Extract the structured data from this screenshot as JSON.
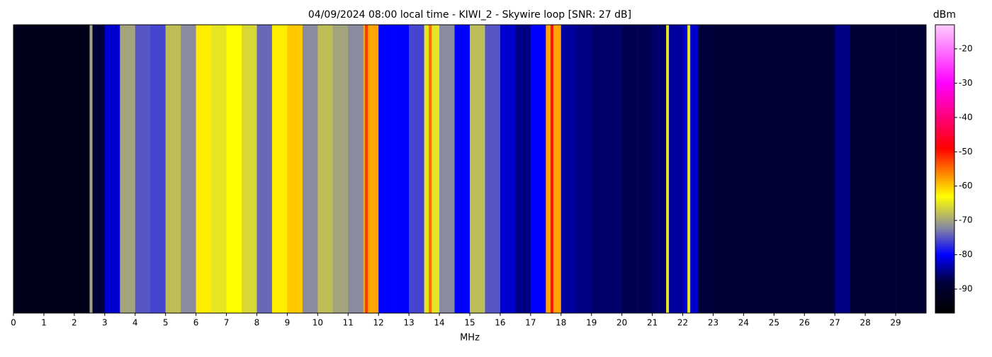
{
  "chart_data": {
    "type": "spectrogram",
    "title": "04/09/2024 08:00 local time - KIWI_2 - Skywire loop [SNR: 27 dB]",
    "x_label": "MHz",
    "colorbar_label": "dBm",
    "xlim": [
      0,
      30
    ],
    "xticks": [
      0,
      1,
      2,
      3,
      4,
      5,
      6,
      7,
      8,
      9,
      10,
      11,
      12,
      13,
      14,
      15,
      16,
      17,
      18,
      19,
      20,
      21,
      22,
      23,
      24,
      25,
      26,
      27,
      28,
      29
    ],
    "clim": [
      -97,
      -13
    ],
    "cticks": [
      -20,
      -30,
      -40,
      -50,
      -60,
      -70,
      -80,
      -90
    ],
    "colorscale": [
      [
        -97,
        "#000000"
      ],
      [
        -88,
        "#00003a"
      ],
      [
        -80,
        "#0000ff"
      ],
      [
        -72,
        "#8a8aa0"
      ],
      [
        -63,
        "#ffff00"
      ],
      [
        -56,
        "#ff8000"
      ],
      [
        -49,
        "#ff0000"
      ],
      [
        -30,
        "#ff00ff"
      ],
      [
        -13,
        "#ffccff"
      ]
    ],
    "x": [
      0,
      0.5,
      1,
      1.5,
      2,
      2.5,
      3,
      3.5,
      4,
      4.5,
      5,
      5.5,
      6,
      6.5,
      7,
      7.5,
      8,
      8.5,
      9,
      9.5,
      10,
      10.5,
      11,
      11.5,
      12,
      12.5,
      13,
      13.5,
      14,
      14.5,
      15,
      15.5,
      16,
      16.5,
      17,
      17.5,
      18,
      18.5,
      19,
      19.5,
      20,
      20.5,
      21,
      21.5,
      22,
      22.5,
      23,
      23.5,
      24,
      24.5,
      25,
      25.5,
      26,
      26.5,
      27,
      27.5,
      28,
      28.5,
      29,
      29.5
    ],
    "values": [
      -93,
      -93,
      -93,
      -93,
      -93,
      -88,
      -82,
      -70,
      -75,
      -76,
      -68,
      -72,
      -62,
      -65,
      -63,
      -66,
      -74,
      -62,
      -60,
      -72,
      -68,
      -70,
      -72,
      -58,
      -80,
      -80,
      -76,
      -65,
      -72,
      -80,
      -68,
      -75,
      -82,
      -85,
      -80,
      -58,
      -84,
      -85,
      -86,
      -86,
      -87,
      -87,
      -86,
      -84,
      -82,
      -88,
      -89,
      -89,
      -89,
      -89,
      -89,
      -89,
      -89,
      -89,
      -85,
      -89,
      -89,
      -89,
      -89,
      -89
    ],
    "peaks": {
      "x": [
        2.55,
        11.6,
        13.7,
        17.7,
        21.5,
        22.2
      ],
      "values": [
        -70,
        -52,
        -55,
        -50,
        -65,
        -65
      ]
    }
  }
}
